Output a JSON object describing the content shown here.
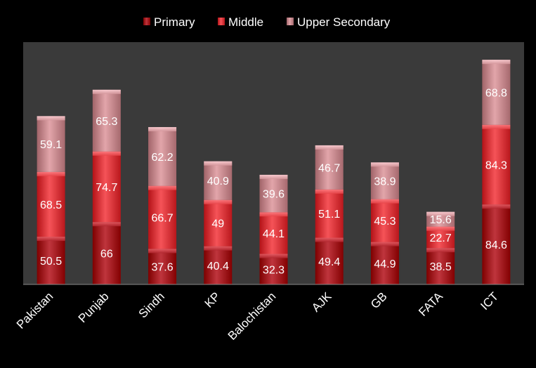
{
  "chart_data": {
    "type": "bar",
    "stacked": true,
    "title": "",
    "xlabel": "",
    "ylabel": "",
    "categories": [
      "Pakistan",
      "Punjab",
      "Sindh",
      "KP",
      "Balochistan",
      "AJK",
      "GB",
      "FATA",
      "ICT"
    ],
    "series": [
      {
        "name": "Primary",
        "values": [
          50.5,
          66,
          37.6,
          40.4,
          32.3,
          49.4,
          44.9,
          38.5,
          84.6
        ],
        "color": "#a61c24"
      },
      {
        "name": "Middle",
        "values": [
          68.5,
          74.7,
          66.7,
          49,
          44.1,
          51.1,
          45.3,
          22.7,
          84.3
        ],
        "color": "#dc3a3f"
      },
      {
        "name": "Upper Secondary",
        "values": [
          59.1,
          65.3,
          62.2,
          40.9,
          39.6,
          46.7,
          38.9,
          15.6,
          68.8
        ],
        "color": "#c98c91"
      }
    ],
    "ylim": [
      0,
      240
    ],
    "legend_position": "top",
    "grid": false,
    "colors": {
      "page_background": "#000000",
      "plot_background": "#3a3a3a",
      "text": "#ffffff",
      "axis_line": "#8a8a8a"
    }
  }
}
